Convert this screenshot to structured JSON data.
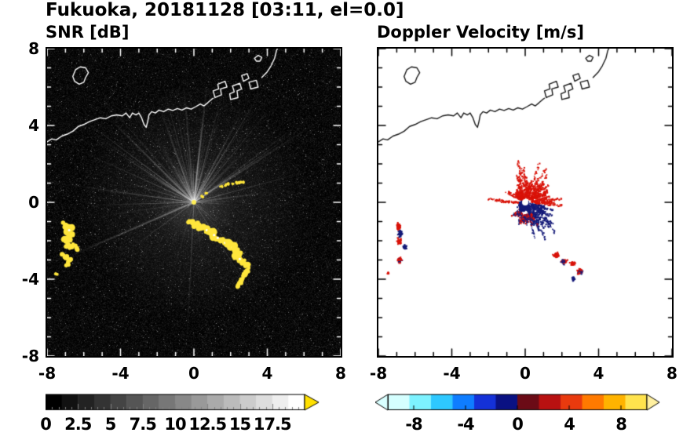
{
  "title": "Fukuoka, 20181128 [03:11, el=0.0]",
  "panels": [
    {
      "subtitle": "SNR [dB]"
    },
    {
      "subtitle": "Doppler Velocity [m/s]"
    }
  ],
  "chart_data": [
    {
      "type": "heatmap",
      "title": "SNR [dB]",
      "xlim": [
        -8,
        8
      ],
      "ylim": [
        -8,
        8
      ],
      "x_tick_labels": [
        "-8",
        "-4",
        "0",
        "4",
        "8"
      ],
      "y_tick_labels": [
        "8",
        "4",
        "0",
        "-4",
        "-8"
      ],
      "background_color": "#060606",
      "radar_center_xy": [
        0,
        0
      ],
      "ray_count": 95,
      "echo_color": "#ffe63c",
      "echo_blobs": [
        [
          -7.05,
          -1.15,
          4
        ],
        [
          -6.95,
          -1.3,
          5
        ],
        [
          -6.8,
          -1.45,
          5
        ],
        [
          -6.75,
          -1.65,
          4
        ],
        [
          -6.85,
          -1.85,
          4
        ],
        [
          -7.0,
          -2.0,
          4
        ],
        [
          -6.9,
          -2.2,
          4
        ],
        [
          -6.7,
          -2.3,
          4
        ],
        [
          -6.5,
          -2.25,
          3
        ],
        [
          -6.35,
          -2.4,
          3
        ],
        [
          -7.1,
          -2.75,
          3
        ],
        [
          -6.95,
          -2.9,
          4
        ],
        [
          -6.8,
          -3.05,
          3
        ],
        [
          -6.9,
          -3.2,
          3
        ],
        [
          -7.5,
          -3.7,
          2
        ],
        [
          -0.25,
          -0.95,
          3
        ],
        [
          -0.1,
          -1.05,
          4
        ],
        [
          0.1,
          -1.15,
          4
        ],
        [
          0.3,
          -1.25,
          4
        ],
        [
          0.5,
          -1.3,
          4
        ],
        [
          0.7,
          -1.45,
          5
        ],
        [
          0.9,
          -1.55,
          5
        ],
        [
          1.1,
          -1.7,
          5
        ],
        [
          1.3,
          -1.85,
          5
        ],
        [
          1.5,
          -1.95,
          4
        ],
        [
          1.7,
          -2.1,
          5
        ],
        [
          1.9,
          -2.2,
          5
        ],
        [
          2.1,
          -2.35,
          5
        ],
        [
          2.3,
          -2.5,
          4
        ],
        [
          2.45,
          -2.65,
          4
        ],
        [
          2.3,
          -2.8,
          4
        ],
        [
          2.5,
          -2.95,
          5
        ],
        [
          2.7,
          -3.1,
          4
        ],
        [
          2.9,
          -3.3,
          4
        ],
        [
          3.0,
          -3.5,
          4
        ],
        [
          2.85,
          -3.65,
          4
        ],
        [
          2.7,
          -3.8,
          3
        ],
        [
          2.6,
          -4.0,
          3
        ],
        [
          2.5,
          -4.2,
          3
        ],
        [
          2.35,
          -4.35,
          3
        ],
        [
          0.45,
          0.3,
          2
        ],
        [
          0.7,
          0.45,
          2
        ],
        [
          1.5,
          0.85,
          2
        ],
        [
          1.7,
          0.9,
          2
        ],
        [
          1.9,
          0.95,
          2
        ],
        [
          2.1,
          0.95,
          2
        ],
        [
          2.3,
          1.0,
          2
        ],
        [
          2.5,
          1.0,
          2
        ],
        [
          2.7,
          1.05,
          2
        ]
      ],
      "colorbar": {
        "min": 0,
        "max": 20,
        "tick_values": [
          0,
          2.5,
          5,
          7.5,
          10,
          12.5,
          15,
          17.5
        ],
        "tick_labels": [
          "0",
          "2.5",
          "5",
          "7.5",
          "10",
          "12.5",
          "15",
          "17.5"
        ],
        "start_color": "#000000",
        "end_color": "#ffffff",
        "overflow_arrow_color": "#ffe000"
      }
    },
    {
      "type": "heatmap",
      "title": "Doppler Velocity [m/s]",
      "xlim": [
        -8,
        8
      ],
      "ylim": [
        -8,
        8
      ],
      "x_tick_labels": [
        "-8",
        "-4",
        "0",
        "4",
        "8"
      ],
      "y_tick_labels": [
        "8",
        "4",
        "0",
        "-4",
        "-8"
      ],
      "background_color": "#ffffff",
      "positive_color": "#d91309",
      "negative_color": "#141a78",
      "spike_fans": [
        {
          "angle": 80,
          "spread": 70,
          "rmin": 0.25,
          "rmax": 2.3,
          "n": 500,
          "color": "pos"
        },
        {
          "angle": 35,
          "spread": 30,
          "rmin": 0.3,
          "rmax": 1.8,
          "n": 250,
          "color": "pos"
        },
        {
          "angle": 5,
          "spread": 22,
          "rmin": 0.3,
          "rmax": 2.5,
          "n": 220,
          "color": "pos"
        },
        {
          "angle": 135,
          "spread": 40,
          "rmin": 0.25,
          "rmax": 1.4,
          "n": 220,
          "color": "pos"
        },
        {
          "angle": 176,
          "spread": 6,
          "rmin": 0.3,
          "rmax": 2.2,
          "n": 90,
          "color": "pos"
        },
        {
          "angle": -50,
          "spread": 55,
          "rmin": 0.3,
          "rmax": 2.3,
          "n": 450,
          "color": "neg"
        },
        {
          "angle": -85,
          "spread": 50,
          "rmin": 0.6,
          "rmax": 1.4,
          "n": 260,
          "color": "mix"
        },
        {
          "angle": -125,
          "spread": 30,
          "rmin": 0.3,
          "rmax": 1.1,
          "n": 120,
          "color": "mix"
        },
        {
          "angle": -15,
          "spread": 14,
          "rmin": 0.3,
          "rmax": 1.7,
          "n": 110,
          "color": "neg"
        }
      ],
      "clusters": [
        {
          "x": -0.1,
          "y": -0.15,
          "rx": 0.28,
          "ry": 0.24,
          "n": 800,
          "c": "neg"
        },
        {
          "x": -6.95,
          "y": -1.25,
          "rx": 0.12,
          "ry": 0.18,
          "n": 50,
          "c": "pos"
        },
        {
          "x": -6.85,
          "y": -1.6,
          "rx": 0.12,
          "ry": 0.18,
          "n": 45,
          "c": "neg"
        },
        {
          "x": -6.9,
          "y": -2.0,
          "rx": 0.12,
          "ry": 0.15,
          "n": 40,
          "c": "pos"
        },
        {
          "x": -6.6,
          "y": -2.3,
          "rx": 0.15,
          "ry": 0.12,
          "n": 40,
          "c": "neg"
        },
        {
          "x": -6.9,
          "y": -2.95,
          "rx": 0.15,
          "ry": 0.15,
          "n": 45,
          "c": "mix"
        },
        {
          "x": -7.5,
          "y": -3.65,
          "rx": 0.06,
          "ry": 0.06,
          "n": 10,
          "c": "pos"
        },
        {
          "x": 1.65,
          "y": -2.7,
          "rx": 0.15,
          "ry": 0.12,
          "n": 50,
          "c": "pos"
        },
        {
          "x": 2.05,
          "y": -3.05,
          "rx": 0.17,
          "ry": 0.13,
          "n": 55,
          "c": "mix"
        },
        {
          "x": 2.55,
          "y": -3.15,
          "rx": 0.14,
          "ry": 0.1,
          "n": 40,
          "c": "pos"
        },
        {
          "x": 2.95,
          "y": -3.55,
          "rx": 0.16,
          "ry": 0.13,
          "n": 50,
          "c": "mix"
        },
        {
          "x": 2.6,
          "y": -3.95,
          "rx": 0.1,
          "ry": 0.1,
          "n": 25,
          "c": "neg"
        }
      ],
      "colorbar": {
        "min": -10,
        "max": 10,
        "tick_values": [
          -8,
          -4,
          0,
          4,
          8
        ],
        "tick_labels": [
          "-8",
          "-4",
          "0",
          "4",
          "8"
        ],
        "segment_colors": [
          "#d5ffff",
          "#7df2ff",
          "#2ec8ff",
          "#0f7dff",
          "#1431d8",
          "#0a1182",
          "#6b0b16",
          "#b81111",
          "#e93a0e",
          "#ff7a00",
          "#ffb300",
          "#ffe34d"
        ],
        "left_arrow_color": "#d8ffff",
        "right_arrow_color": "#fff0a0"
      }
    }
  ],
  "coastline": {
    "color_on_dark": "#ffffff",
    "color_on_light": "#1b1b1b",
    "paths": [
      {
        "closed": false,
        "points": [
          [
            -8,
            3.15
          ],
          [
            -7.75,
            3.3
          ],
          [
            -7.5,
            3.25
          ],
          [
            -7.2,
            3.45
          ],
          [
            -6.9,
            3.55
          ],
          [
            -6.6,
            3.7
          ],
          [
            -6.3,
            3.95
          ],
          [
            -6.0,
            4.05
          ],
          [
            -5.7,
            4.2
          ],
          [
            -5.4,
            4.3
          ],
          [
            -5.1,
            4.4
          ],
          [
            -4.8,
            4.35
          ],
          [
            -4.5,
            4.5
          ],
          [
            -4.2,
            4.55
          ],
          [
            -3.9,
            4.5
          ],
          [
            -3.7,
            4.65
          ],
          [
            -3.5,
            4.4
          ],
          [
            -3.35,
            4.65
          ],
          [
            -3.15,
            4.55
          ],
          [
            -3.0,
            4.65
          ],
          [
            -2.85,
            4.4
          ],
          [
            -2.72,
            4.05
          ],
          [
            -2.6,
            3.9
          ],
          [
            -2.52,
            4.2
          ],
          [
            -2.45,
            4.55
          ],
          [
            -2.3,
            4.72
          ],
          [
            -2.1,
            4.65
          ],
          [
            -1.9,
            4.8
          ],
          [
            -1.65,
            4.72
          ],
          [
            -1.4,
            4.85
          ],
          [
            -1.15,
            4.78
          ],
          [
            -0.9,
            4.88
          ],
          [
            -0.65,
            4.8
          ],
          [
            -0.4,
            4.92
          ],
          [
            -0.15,
            4.85
          ],
          [
            0.1,
            4.98
          ],
          [
            0.35,
            5.12
          ],
          [
            0.55,
            5.02
          ],
          [
            0.75,
            5.18
          ],
          [
            0.95,
            5.35
          ],
          [
            1.05,
            5.42
          ]
        ]
      },
      {
        "closed": true,
        "points": [
          [
            -6.6,
            6.55
          ],
          [
            -6.45,
            6.9
          ],
          [
            -6.2,
            7.05
          ],
          [
            -5.9,
            7.0
          ],
          [
            -5.75,
            6.75
          ],
          [
            -5.9,
            6.5
          ],
          [
            -6.0,
            6.25
          ],
          [
            -6.25,
            6.15
          ],
          [
            -6.5,
            6.3
          ]
        ]
      },
      {
        "closed": true,
        "points": [
          [
            1.15,
            5.45
          ],
          [
            1.5,
            5.6
          ],
          [
            1.45,
            5.9
          ],
          [
            1.8,
            6.0
          ],
          [
            1.7,
            6.3
          ],
          [
            1.3,
            6.15
          ],
          [
            1.35,
            5.9
          ],
          [
            1.05,
            5.8
          ]
        ]
      },
      {
        "closed": true,
        "points": [
          [
            2.0,
            5.35
          ],
          [
            2.4,
            5.45
          ],
          [
            2.35,
            5.8
          ],
          [
            2.6,
            5.9
          ],
          [
            2.5,
            6.2
          ],
          [
            2.1,
            6.05
          ],
          [
            2.2,
            5.75
          ],
          [
            1.95,
            5.65
          ]
        ]
      },
      {
        "closed": true,
        "points": [
          [
            2.7,
            6.3
          ],
          [
            3.0,
            6.45
          ],
          [
            2.9,
            6.7
          ],
          [
            2.6,
            6.6
          ]
        ]
      },
      {
        "closed": true,
        "points": [
          [
            3.1,
            5.9
          ],
          [
            3.5,
            6.0
          ],
          [
            3.4,
            6.35
          ],
          [
            3.0,
            6.25
          ]
        ]
      },
      {
        "closed": true,
        "points": [
          [
            3.3,
            7.5
          ],
          [
            3.5,
            7.65
          ],
          [
            3.7,
            7.55
          ],
          [
            3.6,
            7.35
          ],
          [
            3.4,
            7.35
          ]
        ]
      },
      {
        "closed": false,
        "points": [
          [
            3.7,
            6.5
          ],
          [
            4.0,
            6.8
          ],
          [
            4.2,
            7.1
          ],
          [
            4.4,
            7.5
          ],
          [
            4.5,
            7.9
          ],
          [
            4.55,
            8.0
          ]
        ]
      }
    ]
  }
}
